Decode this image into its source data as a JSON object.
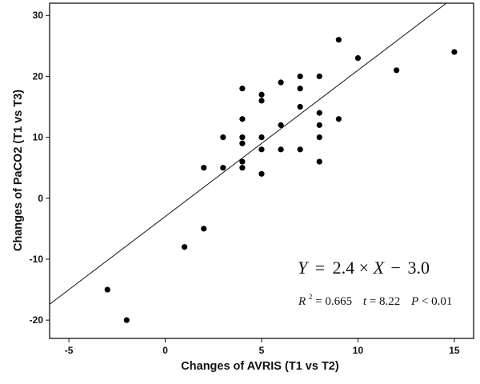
{
  "chart_data": {
    "type": "scatter",
    "xlabel": "Changes of AVRIS (T1 vs T2)",
    "ylabel": "Changes of PaCO2   (T1 vs T3)",
    "xlim": [
      -6,
      16
    ],
    "ylim": [
      -23,
      32
    ],
    "xticks": [
      -5,
      0,
      5,
      10,
      15
    ],
    "yticks": [
      -20,
      -10,
      0,
      10,
      20,
      30
    ],
    "grid": false,
    "points": [
      {
        "x": -3,
        "y": -15
      },
      {
        "x": -2,
        "y": -20
      },
      {
        "x": 1,
        "y": -8
      },
      {
        "x": 2,
        "y": -5
      },
      {
        "x": 2,
        "y": 5
      },
      {
        "x": 3,
        "y": 5
      },
      {
        "x": 3,
        "y": 10
      },
      {
        "x": 4,
        "y": 5
      },
      {
        "x": 4,
        "y": 6
      },
      {
        "x": 4,
        "y": 9
      },
      {
        "x": 4,
        "y": 10
      },
      {
        "x": 4,
        "y": 13
      },
      {
        "x": 4,
        "y": 18
      },
      {
        "x": 5,
        "y": 4
      },
      {
        "x": 5,
        "y": 8
      },
      {
        "x": 5,
        "y": 10
      },
      {
        "x": 5,
        "y": 16
      },
      {
        "x": 5,
        "y": 17
      },
      {
        "x": 6,
        "y": 8
      },
      {
        "x": 6,
        "y": 12
      },
      {
        "x": 6,
        "y": 19
      },
      {
        "x": 7,
        "y": 8
      },
      {
        "x": 7,
        "y": 15
      },
      {
        "x": 7,
        "y": 18
      },
      {
        "x": 7,
        "y": 20
      },
      {
        "x": 8,
        "y": 6
      },
      {
        "x": 8,
        "y": 10
      },
      {
        "x": 8,
        "y": 12
      },
      {
        "x": 8,
        "y": 14
      },
      {
        "x": 8,
        "y": 20
      },
      {
        "x": 9,
        "y": 13
      },
      {
        "x": 9,
        "y": 26
      },
      {
        "x": 10,
        "y": 23
      },
      {
        "x": 12,
        "y": 21
      },
      {
        "x": 15,
        "y": 24
      }
    ],
    "regression": {
      "slope": 2.4,
      "intercept": -3.0
    },
    "equation": {
      "y": "Y",
      "eq": "=",
      "slope": "2.4",
      "times": "×",
      "x": "X",
      "minus": "−",
      "intercept": "3.0"
    },
    "stats": {
      "r2_label": "R",
      "r2_sup": "2",
      "r2_value": " = 0.665",
      "t_label": "t",
      "t_value": " = 8.22",
      "p_label": "P",
      "p_value": " < 0.01"
    }
  }
}
